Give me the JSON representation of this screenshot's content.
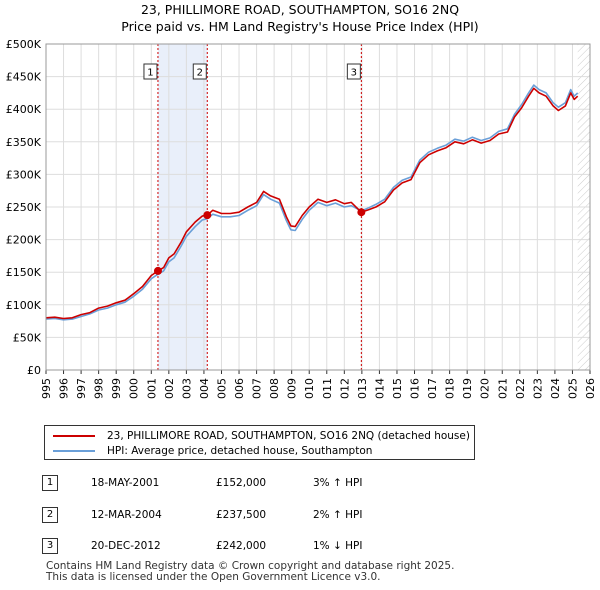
{
  "header": {
    "title_line1": "23, PHILLIMORE ROAD, SOUTHAMPTON, SO16 2NQ",
    "title_line2": "Price paid vs. HM Land Registry's House Price Index (HPI)"
  },
  "chart_data": {
    "type": "line",
    "x_range": [
      1995,
      2026
    ],
    "ylim": [
      0,
      500000
    ],
    "y_ticks": [
      0,
      50000,
      100000,
      150000,
      200000,
      250000,
      300000,
      350000,
      400000,
      450000,
      500000
    ],
    "y_tick_labels": [
      "£0",
      "£50K",
      "£100K",
      "£150K",
      "£200K",
      "£250K",
      "£300K",
      "£350K",
      "£400K",
      "£450K",
      "£500K"
    ],
    "x_ticks": [
      1995,
      1996,
      1997,
      1998,
      1999,
      2000,
      2001,
      2002,
      2003,
      2004,
      2005,
      2006,
      2007,
      2008,
      2009,
      2010,
      2011,
      2012,
      2013,
      2014,
      2015,
      2016,
      2017,
      2018,
      2019,
      2020,
      2021,
      2022,
      2023,
      2024,
      2025,
      2026
    ],
    "data_end_year": 2025.3,
    "grid": true,
    "series": [
      {
        "name": "23, PHILLIMORE ROAD, SOUTHAMPTON, SO16 2NQ (detached house)",
        "color": "#cc0000",
        "points": [
          [
            1995.0,
            80000
          ],
          [
            1995.5,
            81000
          ],
          [
            1996.0,
            79000
          ],
          [
            1996.5,
            80000
          ],
          [
            1997.0,
            85000
          ],
          [
            1997.5,
            88000
          ],
          [
            1998.0,
            95000
          ],
          [
            1998.5,
            98000
          ],
          [
            1999.0,
            103000
          ],
          [
            1999.5,
            107000
          ],
          [
            2000.0,
            117000
          ],
          [
            2000.5,
            128000
          ],
          [
            2001.0,
            145000
          ],
          [
            2001.38,
            152000
          ],
          [
            2001.7,
            157000
          ],
          [
            2002.0,
            172000
          ],
          [
            2002.3,
            178000
          ],
          [
            2002.7,
            196000
          ],
          [
            2003.0,
            212000
          ],
          [
            2003.5,
            227000
          ],
          [
            2003.9,
            236000
          ],
          [
            2004.19,
            237500
          ],
          [
            2004.5,
            245000
          ],
          [
            2005.0,
            240000
          ],
          [
            2005.5,
            240000
          ],
          [
            2006.0,
            242000
          ],
          [
            2006.5,
            250000
          ],
          [
            2007.0,
            257000
          ],
          [
            2007.4,
            274000
          ],
          [
            2007.8,
            267000
          ],
          [
            2008.3,
            262000
          ],
          [
            2008.7,
            235000
          ],
          [
            2008.95,
            221000
          ],
          [
            2009.2,
            220000
          ],
          [
            2009.6,
            237000
          ],
          [
            2010.0,
            250000
          ],
          [
            2010.5,
            262000
          ],
          [
            2011.0,
            257000
          ],
          [
            2011.5,
            261000
          ],
          [
            2012.0,
            255000
          ],
          [
            2012.4,
            257000
          ],
          [
            2012.97,
            242000
          ],
          [
            2013.4,
            246000
          ],
          [
            2013.8,
            250000
          ],
          [
            2014.3,
            258000
          ],
          [
            2014.8,
            276000
          ],
          [
            2015.3,
            287000
          ],
          [
            2015.8,
            292000
          ],
          [
            2016.3,
            318000
          ],
          [
            2016.8,
            330000
          ],
          [
            2017.3,
            336000
          ],
          [
            2017.8,
            341000
          ],
          [
            2018.3,
            350000
          ],
          [
            2018.8,
            347000
          ],
          [
            2019.3,
            353000
          ],
          [
            2019.8,
            348000
          ],
          [
            2020.3,
            352000
          ],
          [
            2020.8,
            362000
          ],
          [
            2021.3,
            365000
          ],
          [
            2021.7,
            388000
          ],
          [
            2022.1,
            402000
          ],
          [
            2022.5,
            420000
          ],
          [
            2022.8,
            432000
          ],
          [
            2023.1,
            425000
          ],
          [
            2023.5,
            420000
          ],
          [
            2023.9,
            405000
          ],
          [
            2024.2,
            398000
          ],
          [
            2024.6,
            405000
          ],
          [
            2024.9,
            425000
          ],
          [
            2025.1,
            415000
          ],
          [
            2025.3,
            420000
          ]
        ]
      },
      {
        "name": "HPI: Average price, detached house, Southampton",
        "color": "#6a9fd8",
        "points": [
          [
            1995.0,
            78000
          ],
          [
            1995.5,
            79000
          ],
          [
            1996.0,
            77000
          ],
          [
            1996.5,
            78000
          ],
          [
            1997.0,
            82000
          ],
          [
            1997.5,
            86000
          ],
          [
            1998.0,
            92000
          ],
          [
            1998.5,
            95000
          ],
          [
            1999.0,
            100000
          ],
          [
            1999.5,
            104000
          ],
          [
            2000.0,
            113000
          ],
          [
            2000.5,
            124000
          ],
          [
            2001.0,
            140000
          ],
          [
            2001.38,
            147000
          ],
          [
            2001.7,
            152000
          ],
          [
            2002.0,
            166000
          ],
          [
            2002.3,
            172000
          ],
          [
            2002.7,
            190000
          ],
          [
            2003.0,
            205000
          ],
          [
            2003.5,
            220000
          ],
          [
            2003.9,
            230000
          ],
          [
            2004.19,
            232000
          ],
          [
            2004.5,
            239000
          ],
          [
            2005.0,
            235000
          ],
          [
            2005.5,
            235000
          ],
          [
            2006.0,
            237000
          ],
          [
            2006.5,
            245000
          ],
          [
            2007.0,
            252000
          ],
          [
            2007.4,
            269000
          ],
          [
            2007.8,
            262000
          ],
          [
            2008.3,
            256000
          ],
          [
            2008.7,
            229000
          ],
          [
            2008.95,
            215000
          ],
          [
            2009.2,
            214000
          ],
          [
            2009.6,
            231000
          ],
          [
            2010.0,
            245000
          ],
          [
            2010.5,
            257000
          ],
          [
            2011.0,
            252000
          ],
          [
            2011.5,
            256000
          ],
          [
            2012.0,
            250000
          ],
          [
            2012.4,
            252000
          ],
          [
            2012.97,
            244000
          ],
          [
            2013.4,
            249000
          ],
          [
            2013.8,
            254000
          ],
          [
            2014.3,
            262000
          ],
          [
            2014.8,
            280000
          ],
          [
            2015.3,
            291000
          ],
          [
            2015.8,
            296000
          ],
          [
            2016.3,
            322000
          ],
          [
            2016.8,
            334000
          ],
          [
            2017.3,
            340000
          ],
          [
            2017.8,
            345000
          ],
          [
            2018.3,
            354000
          ],
          [
            2018.8,
            351000
          ],
          [
            2019.3,
            357000
          ],
          [
            2019.8,
            352000
          ],
          [
            2020.3,
            356000
          ],
          [
            2020.8,
            366000
          ],
          [
            2021.3,
            370000
          ],
          [
            2021.7,
            392000
          ],
          [
            2022.1,
            407000
          ],
          [
            2022.5,
            425000
          ],
          [
            2022.8,
            437000
          ],
          [
            2023.1,
            430000
          ],
          [
            2023.5,
            425000
          ],
          [
            2023.9,
            410000
          ],
          [
            2024.2,
            403000
          ],
          [
            2024.6,
            410000
          ],
          [
            2024.9,
            430000
          ],
          [
            2025.1,
            420000
          ],
          [
            2025.3,
            425000
          ]
        ]
      }
    ],
    "sales": [
      {
        "num": "1",
        "year": 2001.38,
        "price": 152000
      },
      {
        "num": "2",
        "year": 2004.19,
        "price": 237500
      },
      {
        "num": "3",
        "year": 2012.97,
        "price": 242000
      }
    ],
    "shaded_periods": [
      [
        2001.38,
        2004.19
      ]
    ]
  },
  "legend": {
    "items": [
      {
        "label": "23, PHILLIMORE ROAD, SOUTHAMPTON, SO16 2NQ (detached house)",
        "color": "#cc0000"
      },
      {
        "label": "HPI: Average price, detached house, Southampton",
        "color": "#6a9fd8"
      }
    ]
  },
  "sales_table": [
    {
      "num": "1",
      "date": "18-MAY-2001",
      "price": "£152,000",
      "hpi": "3% ↑ HPI"
    },
    {
      "num": "2",
      "date": "12-MAR-2004",
      "price": "£237,500",
      "hpi": "2% ↑ HPI"
    },
    {
      "num": "3",
      "date": "20-DEC-2012",
      "price": "£242,000",
      "hpi": "1% ↓ HPI"
    }
  ],
  "footer": {
    "line1": "Contains HM Land Registry data © Crown copyright and database right 2025.",
    "line2": "This data is licensed under the Open Government Licence v3.0."
  }
}
